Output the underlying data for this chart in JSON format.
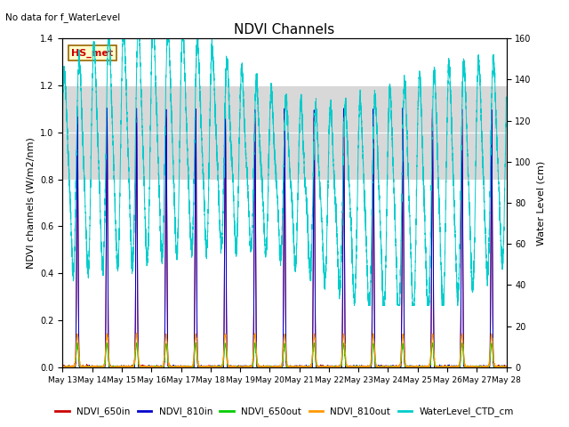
{
  "title": "NDVI Channels",
  "title_note": "No data for f_WaterLevel",
  "station_label": "HS_met",
  "ylabel_left": "NDVI channels (W/m2/nm)",
  "ylabel_right": "Water Level (cm)",
  "ylim_left": [
    0.0,
    1.4
  ],
  "ylim_right": [
    0,
    160
  ],
  "yticks_left": [
    0.0,
    0.2,
    0.4,
    0.6,
    0.8,
    1.0,
    1.2,
    1.4
  ],
  "yticks_right": [
    0,
    20,
    40,
    60,
    80,
    100,
    120,
    140,
    160
  ],
  "xstart_day": 13,
  "xend_day": 28,
  "xtick_days": [
    13,
    14,
    15,
    16,
    17,
    18,
    19,
    20,
    21,
    22,
    23,
    24,
    25,
    26,
    27,
    28
  ],
  "colors": {
    "NDVI_650in": "#cc0000",
    "NDVI_810in": "#0000cc",
    "NDVI_650out": "#00cc00",
    "NDVI_810out": "#ff9900",
    "WaterLevel_CTD_cm": "#00cccc"
  },
  "background_band": [
    0.8,
    1.2
  ],
  "background_color": "#d8d8d8",
  "fig_width": 6.4,
  "fig_height": 4.8,
  "dpi": 100
}
